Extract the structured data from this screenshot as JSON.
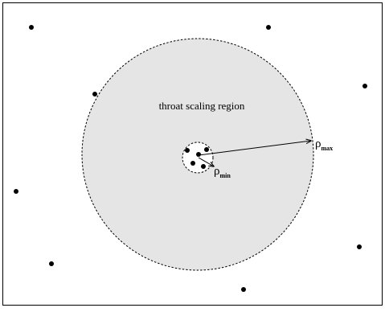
{
  "diagram": {
    "region_label": "throat scaling region",
    "rho_max_symbol": "ρ",
    "rho_max_subscript": "max",
    "rho_min_symbol": "ρ",
    "rho_min_subscript": "min",
    "colors": {
      "region_fill": "#e5e5e5",
      "stroke": "#000000",
      "dot": "#000000"
    }
  }
}
